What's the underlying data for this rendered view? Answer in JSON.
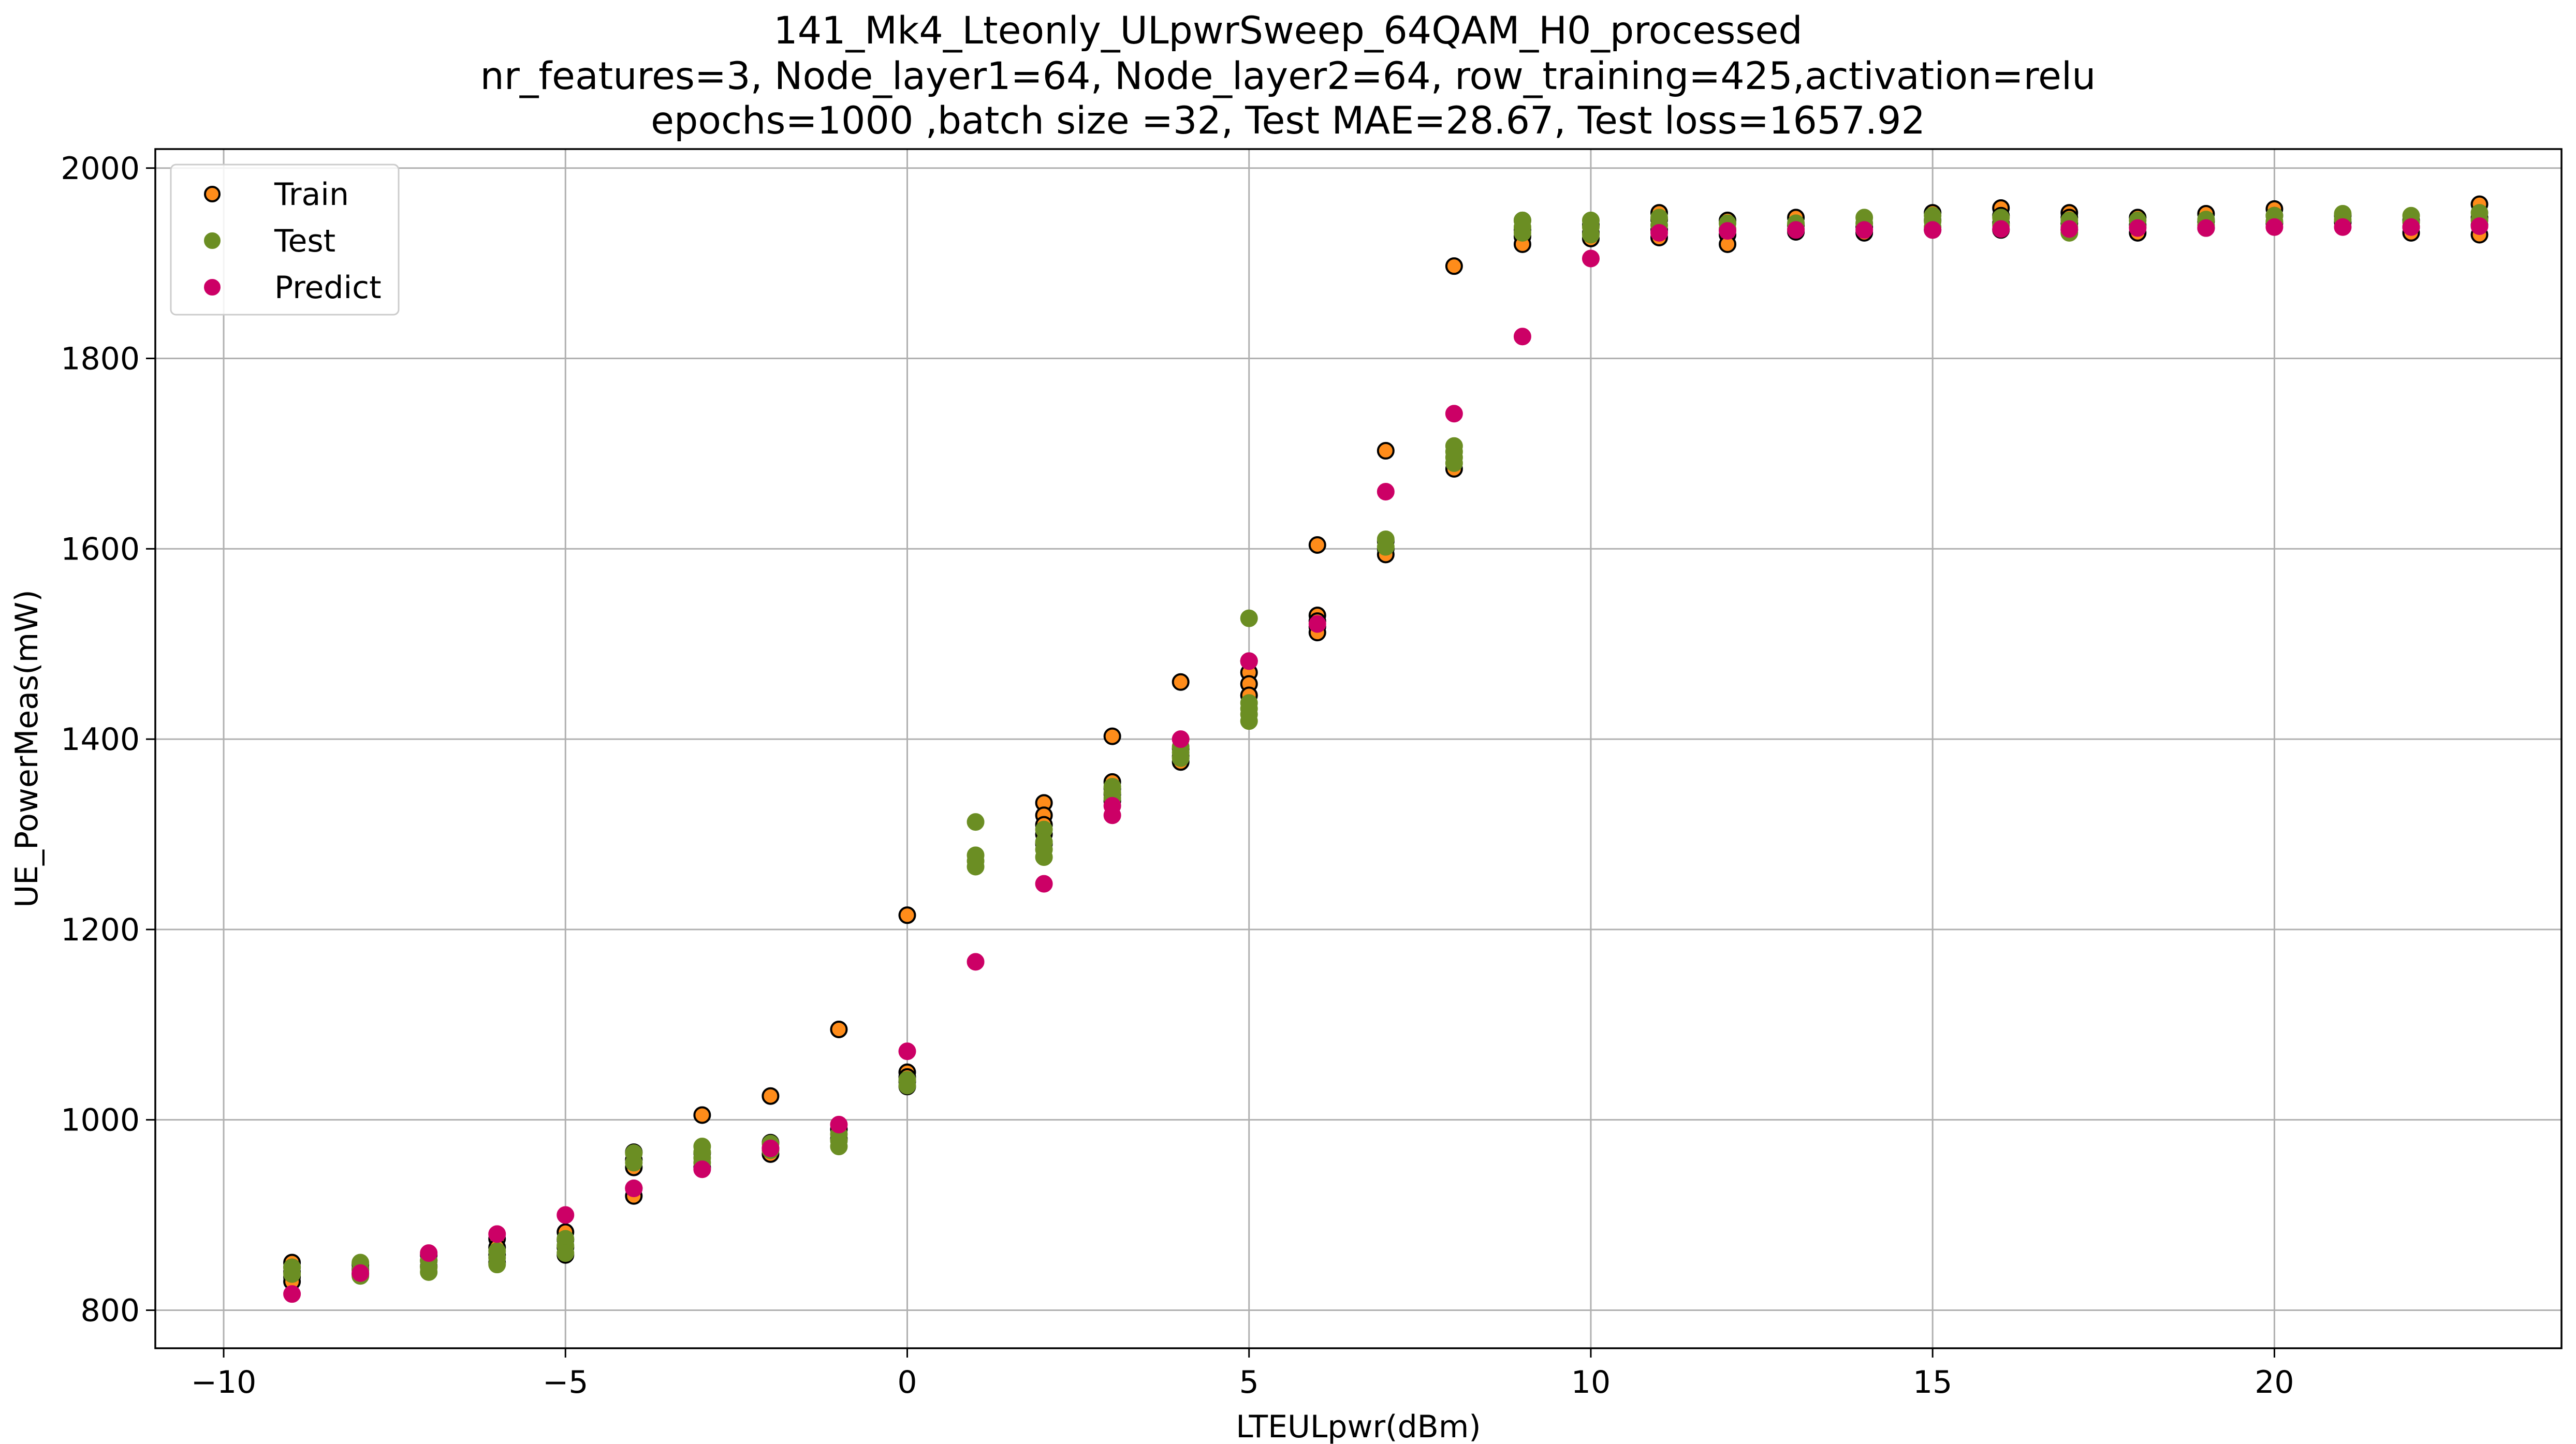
{
  "chart_data": {
    "type": "scatter",
    "title_lines": [
      "141_Mk4_Lteonly_ULpwrSweep_64QAM_H0_processed",
      "nr_features=3, Node_layer1=64, Node_layer2=64, row_training=425,activation=relu",
      "epochs=1000 ,batch size =32, Test MAE=28.67, Test loss=1657.92"
    ],
    "xlabel": "LTEULpwr(dBm)",
    "ylabel": "UE_PowerMeas(mW)",
    "xlim": [
      -11,
      24.2
    ],
    "ylim": [
      760,
      2020
    ],
    "xticks": [
      -10,
      -5,
      0,
      5,
      10,
      15,
      20
    ],
    "xtick_labels": [
      "−10",
      "−5",
      "0",
      "5",
      "10",
      "15",
      "20"
    ],
    "yticks": [
      800,
      1000,
      1200,
      1400,
      1600,
      1800,
      2000
    ],
    "ytick_labels": [
      "800",
      "1000",
      "1200",
      "1400",
      "1600",
      "1800",
      "2000"
    ],
    "grid": true,
    "legend_position": "top-left",
    "series": [
      {
        "name": "Train",
        "color": "#ff8c1a",
        "edge": "#000000",
        "points": [
          [
            -9,
            850
          ],
          [
            -9,
            845
          ],
          [
            -9,
            840
          ],
          [
            -9,
            835
          ],
          [
            -9,
            830
          ],
          [
            -8,
            848
          ],
          [
            -8,
            843
          ],
          [
            -8,
            838
          ],
          [
            -7,
            858
          ],
          [
            -7,
            852
          ],
          [
            -7,
            846
          ],
          [
            -6,
            875
          ],
          [
            -6,
            866
          ],
          [
            -6,
            858
          ],
          [
            -6,
            850
          ],
          [
            -5,
            882
          ],
          [
            -5,
            874
          ],
          [
            -5,
            866
          ],
          [
            -5,
            858
          ],
          [
            -4,
            966
          ],
          [
            -4,
            958
          ],
          [
            -4,
            950
          ],
          [
            -4,
            928
          ],
          [
            -4,
            920
          ],
          [
            -3,
            1005
          ],
          [
            -3,
            965
          ],
          [
            -3,
            950
          ],
          [
            -2,
            1025
          ],
          [
            -2,
            976
          ],
          [
            -2,
            970
          ],
          [
            -2,
            964
          ],
          [
            -1,
            1095
          ],
          [
            -1,
            990
          ],
          [
            -1,
            980
          ],
          [
            0,
            1215
          ],
          [
            0,
            1050
          ],
          [
            0,
            1045
          ],
          [
            0,
            1040
          ],
          [
            0,
            1035
          ],
          [
            2,
            1333
          ],
          [
            2,
            1320
          ],
          [
            2,
            1310
          ],
          [
            2,
            1300
          ],
          [
            2,
            1290
          ],
          [
            3,
            1403
          ],
          [
            3,
            1355
          ],
          [
            3,
            1348
          ],
          [
            3,
            1342
          ],
          [
            3,
            1335
          ],
          [
            4,
            1460
          ],
          [
            4,
            1390
          ],
          [
            4,
            1382
          ],
          [
            4,
            1376
          ],
          [
            5,
            1482
          ],
          [
            5,
            1470
          ],
          [
            5,
            1458
          ],
          [
            5,
            1446
          ],
          [
            6,
            1604
          ],
          [
            6,
            1530
          ],
          [
            6,
            1524
          ],
          [
            6,
            1518
          ],
          [
            6,
            1512
          ],
          [
            7,
            1703
          ],
          [
            7,
            1608
          ],
          [
            7,
            1600
          ],
          [
            7,
            1594
          ],
          [
            8,
            1897
          ],
          [
            8,
            1684
          ],
          [
            9,
            1945
          ],
          [
            9,
            1935
          ],
          [
            9,
            1928
          ],
          [
            9,
            1920
          ],
          [
            10,
            1940
          ],
          [
            10,
            1932
          ],
          [
            10,
            1926
          ],
          [
            11,
            1953
          ],
          [
            11,
            1946
          ],
          [
            11,
            1935
          ],
          [
            11,
            1927
          ],
          [
            12,
            1945
          ],
          [
            12,
            1930
          ],
          [
            12,
            1920
          ],
          [
            13,
            1948
          ],
          [
            13,
            1940
          ],
          [
            13,
            1933
          ],
          [
            14,
            1938
          ],
          [
            14,
            1932
          ],
          [
            15,
            1953
          ],
          [
            15,
            1945
          ],
          [
            15,
            1935
          ],
          [
            16,
            1958
          ],
          [
            16,
            1950
          ],
          [
            16,
            1942
          ],
          [
            16,
            1935
          ],
          [
            17,
            1953
          ],
          [
            17,
            1948
          ],
          [
            17,
            1942
          ],
          [
            17,
            1935
          ],
          [
            18,
            1948
          ],
          [
            18,
            1940
          ],
          [
            18,
            1932
          ],
          [
            19,
            1952
          ],
          [
            19,
            1944
          ],
          [
            19,
            1937
          ],
          [
            20,
            1957
          ],
          [
            20,
            1950
          ],
          [
            20,
            1942
          ],
          [
            21,
            1950
          ],
          [
            21,
            1943
          ],
          [
            22,
            1945
          ],
          [
            22,
            1938
          ],
          [
            22,
            1932
          ],
          [
            23,
            1962
          ],
          [
            23,
            1948
          ],
          [
            23,
            1940
          ],
          [
            23,
            1930
          ]
        ]
      },
      {
        "name": "Test",
        "color": "#6b8e23",
        "edge": "#6b8e23",
        "points": [
          [
            -9,
            845
          ],
          [
            -9,
            838
          ],
          [
            -8,
            850
          ],
          [
            -8,
            842
          ],
          [
            -8,
            836
          ],
          [
            -7,
            852
          ],
          [
            -7,
            845
          ],
          [
            -7,
            840
          ],
          [
            -6,
            862
          ],
          [
            -6,
            855
          ],
          [
            -6,
            848
          ],
          [
            -5,
            875
          ],
          [
            -5,
            868
          ],
          [
            -5,
            860
          ],
          [
            -4,
            965
          ],
          [
            -4,
            955
          ],
          [
            -3,
            972
          ],
          [
            -3,
            966
          ],
          [
            -3,
            960
          ],
          [
            -3,
            955
          ],
          [
            -2,
            975
          ],
          [
            -2,
            968
          ],
          [
            -1,
            985
          ],
          [
            -1,
            978
          ],
          [
            -1,
            972
          ],
          [
            0,
            1042
          ],
          [
            0,
            1036
          ],
          [
            1,
            1313
          ],
          [
            1,
            1278
          ],
          [
            1,
            1272
          ],
          [
            1,
            1266
          ],
          [
            2,
            1305
          ],
          [
            2,
            1292
          ],
          [
            2,
            1284
          ],
          [
            2,
            1276
          ],
          [
            3,
            1350
          ],
          [
            3,
            1344
          ],
          [
            3,
            1338
          ],
          [
            4,
            1392
          ],
          [
            4,
            1386
          ],
          [
            4,
            1380
          ],
          [
            5,
            1527
          ],
          [
            5,
            1438
          ],
          [
            5,
            1432
          ],
          [
            5,
            1426
          ],
          [
            5,
            1419
          ],
          [
            7,
            1610
          ],
          [
            7,
            1602
          ],
          [
            8,
            1708
          ],
          [
            8,
            1702
          ],
          [
            8,
            1696
          ],
          [
            8,
            1690
          ],
          [
            9,
            1945
          ],
          [
            9,
            1938
          ],
          [
            9,
            1932
          ],
          [
            10,
            1945
          ],
          [
            10,
            1938
          ],
          [
            10,
            1930
          ],
          [
            11,
            1948
          ],
          [
            11,
            1940
          ],
          [
            12,
            1942
          ],
          [
            12,
            1936
          ],
          [
            13,
            1942
          ],
          [
            13,
            1936
          ],
          [
            14,
            1948
          ],
          [
            14,
            1942
          ],
          [
            15,
            1950
          ],
          [
            15,
            1944
          ],
          [
            15,
            1938
          ],
          [
            16,
            1948
          ],
          [
            16,
            1940
          ],
          [
            17,
            1945
          ],
          [
            17,
            1938
          ],
          [
            17,
            1932
          ],
          [
            18,
            1945
          ],
          [
            18,
            1938
          ],
          [
            19,
            1946
          ],
          [
            19,
            1940
          ],
          [
            20,
            1950
          ],
          [
            20,
            1944
          ],
          [
            21,
            1952
          ],
          [
            21,
            1946
          ],
          [
            22,
            1950
          ],
          [
            22,
            1943
          ],
          [
            23,
            1953
          ],
          [
            23,
            1945
          ]
        ]
      },
      {
        "name": "Predict",
        "color": "#cc0066",
        "edge": "#cc0066",
        "points": [
          [
            -9,
            817
          ],
          [
            -8,
            839
          ],
          [
            -7,
            860
          ],
          [
            -6,
            880
          ],
          [
            -5,
            900
          ],
          [
            -4,
            928
          ],
          [
            -3,
            948
          ],
          [
            -2,
            970
          ],
          [
            -1,
            995
          ],
          [
            0,
            1072
          ],
          [
            1,
            1166
          ],
          [
            2,
            1248
          ],
          [
            3,
            1320
          ],
          [
            3,
            1330
          ],
          [
            4,
            1400
          ],
          [
            5,
            1482
          ],
          [
            6,
            1521
          ],
          [
            7,
            1660
          ],
          [
            8,
            1742
          ],
          [
            9,
            1823
          ],
          [
            10,
            1905
          ],
          [
            11,
            1932
          ],
          [
            12,
            1934
          ],
          [
            13,
            1935
          ],
          [
            14,
            1935
          ],
          [
            15,
            1935
          ],
          [
            16,
            1936
          ],
          [
            17,
            1936
          ],
          [
            18,
            1937
          ],
          [
            19,
            1937
          ],
          [
            20,
            1938
          ],
          [
            21,
            1938
          ],
          [
            22,
            1938
          ],
          [
            23,
            1939
          ]
        ]
      }
    ]
  }
}
